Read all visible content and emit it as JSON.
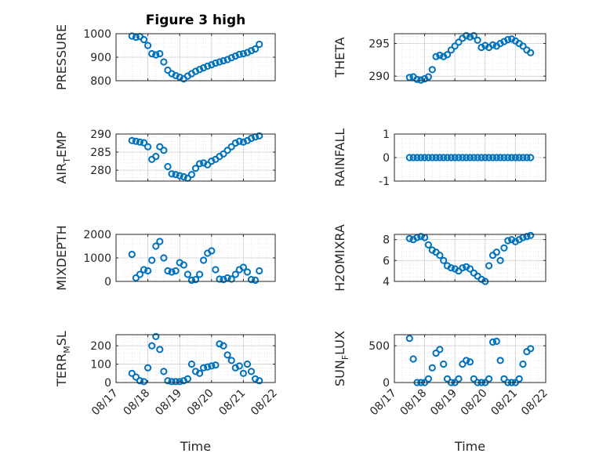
{
  "figure": {
    "title": "Figure 3 high",
    "marker_color": "#0072BD"
  },
  "chart_data": [
    {
      "type": "scatter",
      "id": "pressure",
      "title": "Figure 3 high",
      "ylabel": "PRESSURE",
      "ylabel_parts": [
        "PRESSURE"
      ],
      "xlabel": "",
      "xlim": [
        "08/17",
        "08/22"
      ],
      "ylim": [
        800,
        1000
      ],
      "yticks": [
        800,
        900,
        1000
      ],
      "ytick_labels": [
        "800",
        "900",
        "1000"
      ],
      "xticks": [],
      "xtick_labels": [],
      "x": [
        "08/17 12:00",
        "08/17 15:00",
        "08/17 18:00",
        "08/17 21:00",
        "08/18 00:00",
        "08/18 03:00",
        "08/18 06:00",
        "08/18 09:00",
        "08/18 12:00",
        "08/18 15:00",
        "08/18 18:00",
        "08/18 21:00",
        "08/19 00:00",
        "08/19 03:00",
        "08/19 06:00",
        "08/19 09:00",
        "08/19 12:00",
        "08/19 15:00",
        "08/19 18:00",
        "08/19 21:00",
        "08/20 00:00",
        "08/20 03:00",
        "08/20 06:00",
        "08/20 09:00",
        "08/20 12:00",
        "08/20 15:00",
        "08/20 18:00",
        "08/20 21:00",
        "08/21 00:00",
        "08/21 03:00",
        "08/21 06:00",
        "08/21 09:00",
        "08/21 12:00"
      ],
      "y": [
        990,
        985,
        988,
        975,
        950,
        915,
        910,
        915,
        880,
        845,
        830,
        822,
        815,
        808,
        820,
        830,
        840,
        848,
        855,
        862,
        868,
        875,
        880,
        885,
        890,
        898,
        905,
        912,
        915,
        920,
        928,
        935,
        955
      ]
    },
    {
      "type": "scatter",
      "id": "theta",
      "title": "",
      "ylabel": "THETA",
      "ylabel_parts": [
        "THETA"
      ],
      "xlabel": "",
      "xlim": [
        "08/17",
        "08/22"
      ],
      "ylim": [
        289.3,
        296.5
      ],
      "yticks": [
        290,
        295
      ],
      "ytick_labels": [
        "290",
        "295"
      ],
      "xticks": [],
      "xtick_labels": [],
      "x": [
        "08/17 12:00",
        "08/17 15:00",
        "08/17 18:00",
        "08/17 21:00",
        "08/18 00:00",
        "08/18 03:00",
        "08/18 06:00",
        "08/18 09:00",
        "08/18 12:00",
        "08/18 15:00",
        "08/18 18:00",
        "08/18 21:00",
        "08/19 00:00",
        "08/19 03:00",
        "08/19 06:00",
        "08/19 09:00",
        "08/19 12:00",
        "08/19 15:00",
        "08/19 18:00",
        "08/19 21:00",
        "08/20 00:00",
        "08/20 03:00",
        "08/20 06:00",
        "08/20 09:00",
        "08/20 12:00",
        "08/20 15:00",
        "08/20 18:00",
        "08/20 21:00",
        "08/21 00:00",
        "08/21 03:00",
        "08/21 06:00",
        "08/21 09:00",
        "08/21 12:00"
      ],
      "y": [
        289.8,
        289.9,
        289.5,
        289.4,
        289.6,
        289.9,
        291.0,
        293.0,
        293.2,
        293.0,
        293.3,
        294.0,
        294.6,
        295.2,
        295.8,
        296.2,
        296.0,
        296.2,
        295.5,
        294.4,
        294.7,
        294.4,
        294.8,
        294.6,
        295.0,
        295.3,
        295.6,
        295.7,
        295.4,
        295.0,
        294.6,
        294.0,
        293.6
      ]
    },
    {
      "type": "scatter",
      "id": "air_temp",
      "title": "",
      "ylabel": "AIR_TEMP",
      "ylabel_parts": [
        "AIR",
        "T",
        "EMP"
      ],
      "xlabel": "",
      "xlim": [
        "08/17",
        "08/22"
      ],
      "ylim": [
        277,
        290
      ],
      "yticks": [
        280,
        285,
        290
      ],
      "ytick_labels": [
        "280",
        "285",
        "290"
      ],
      "xticks": [],
      "xtick_labels": [],
      "x": [
        "08/17 12:00",
        "08/17 15:00",
        "08/17 18:00",
        "08/17 21:00",
        "08/18 00:00",
        "08/18 03:00",
        "08/18 06:00",
        "08/18 09:00",
        "08/18 12:00",
        "08/18 15:00",
        "08/18 18:00",
        "08/18 21:00",
        "08/19 00:00",
        "08/19 03:00",
        "08/19 06:00",
        "08/19 09:00",
        "08/19 12:00",
        "08/19 15:00",
        "08/19 18:00",
        "08/19 21:00",
        "08/20 00:00",
        "08/20 03:00",
        "08/20 06:00",
        "08/20 09:00",
        "08/20 12:00",
        "08/20 15:00",
        "08/20 18:00",
        "08/20 21:00",
        "08/21 00:00",
        "08/21 03:00",
        "08/21 06:00",
        "08/21 09:00",
        "08/21 12:00"
      ],
      "y": [
        288.2,
        288.0,
        287.8,
        287.6,
        286.5,
        283.0,
        283.8,
        286.5,
        285.5,
        281.0,
        279.0,
        278.8,
        278.5,
        278.2,
        277.8,
        278.8,
        280.5,
        281.8,
        282.0,
        281.5,
        282.5,
        283.0,
        283.8,
        284.5,
        285.5,
        286.5,
        287.5,
        288.0,
        287.8,
        288.2,
        288.8,
        289.2,
        289.5
      ]
    },
    {
      "type": "scatter",
      "id": "rainfall",
      "title": "",
      "ylabel": "RAINFALL",
      "ylabel_parts": [
        "RAINFALL"
      ],
      "xlabel": "",
      "xlim": [
        "08/17",
        "08/22"
      ],
      "ylim": [
        -1,
        1
      ],
      "yticks": [
        -1,
        0,
        1
      ],
      "ytick_labels": [
        "-1",
        "0",
        "1"
      ],
      "xticks": [],
      "xtick_labels": [],
      "x": [
        "08/17 12:00",
        "08/17 15:00",
        "08/17 18:00",
        "08/17 21:00",
        "08/18 00:00",
        "08/18 03:00",
        "08/18 06:00",
        "08/18 09:00",
        "08/18 12:00",
        "08/18 15:00",
        "08/18 18:00",
        "08/18 21:00",
        "08/19 00:00",
        "08/19 03:00",
        "08/19 06:00",
        "08/19 09:00",
        "08/19 12:00",
        "08/19 15:00",
        "08/19 18:00",
        "08/19 21:00",
        "08/20 00:00",
        "08/20 03:00",
        "08/20 06:00",
        "08/20 09:00",
        "08/20 12:00",
        "08/20 15:00",
        "08/20 18:00",
        "08/20 21:00",
        "08/21 00:00",
        "08/21 03:00",
        "08/21 06:00",
        "08/21 09:00",
        "08/21 12:00"
      ],
      "y": [
        0,
        0,
        0,
        0,
        0,
        0,
        0,
        0,
        0,
        0,
        0,
        0,
        0,
        0,
        0,
        0,
        0,
        0,
        0,
        0,
        0,
        0,
        0,
        0,
        0,
        0,
        0,
        0,
        0,
        0,
        0,
        0,
        0
      ]
    },
    {
      "type": "scatter",
      "id": "mixdepth",
      "title": "",
      "ylabel": "MIXDEPTH",
      "ylabel_parts": [
        "MIXDEPTH"
      ],
      "xlabel": "",
      "xlim": [
        "08/17",
        "08/22"
      ],
      "ylim": [
        0,
        2000
      ],
      "yticks": [
        0,
        1000,
        2000
      ],
      "ytick_labels": [
        "0",
        "1000",
        "2000"
      ],
      "xticks": [],
      "xtick_labels": [],
      "x": [
        "08/17 12:00",
        "08/17 15:00",
        "08/17 18:00",
        "08/17 21:00",
        "08/18 00:00",
        "08/18 03:00",
        "08/18 06:00",
        "08/18 09:00",
        "08/18 12:00",
        "08/18 15:00",
        "08/18 18:00",
        "08/18 21:00",
        "08/19 00:00",
        "08/19 03:00",
        "08/19 06:00",
        "08/19 09:00",
        "08/19 12:00",
        "08/19 15:00",
        "08/19 18:00",
        "08/19 21:00",
        "08/20 00:00",
        "08/20 03:00",
        "08/20 06:00",
        "08/20 09:00",
        "08/20 12:00",
        "08/20 15:00",
        "08/20 18:00",
        "08/20 21:00",
        "08/21 00:00",
        "08/21 03:00",
        "08/21 06:00",
        "08/21 09:00",
        "08/21 12:00"
      ],
      "y": [
        1150,
        150,
        300,
        500,
        450,
        900,
        1500,
        1700,
        1000,
        450,
        400,
        450,
        800,
        700,
        300,
        50,
        80,
        300,
        900,
        1200,
        1300,
        500,
        100,
        80,
        150,
        100,
        300,
        500,
        600,
        400,
        80,
        50,
        450
      ]
    },
    {
      "type": "scatter",
      "id": "h2omixra",
      "title": "",
      "ylabel": "H2OMIXRA",
      "ylabel_parts": [
        "H2OMIXRA"
      ],
      "xlabel": "",
      "xlim": [
        "08/17",
        "08/22"
      ],
      "ylim": [
        4,
        8.5
      ],
      "yticks": [
        4,
        6,
        8
      ],
      "ytick_labels": [
        "4",
        "6",
        "8"
      ],
      "xticks": [],
      "xtick_labels": [],
      "x": [
        "08/17 12:00",
        "08/17 15:00",
        "08/17 18:00",
        "08/17 21:00",
        "08/18 00:00",
        "08/18 03:00",
        "08/18 06:00",
        "08/18 09:00",
        "08/18 12:00",
        "08/18 15:00",
        "08/18 18:00",
        "08/18 21:00",
        "08/19 00:00",
        "08/19 03:00",
        "08/19 06:00",
        "08/19 09:00",
        "08/19 12:00",
        "08/19 15:00",
        "08/19 18:00",
        "08/19 21:00",
        "08/20 00:00",
        "08/20 03:00",
        "08/20 06:00",
        "08/20 09:00",
        "08/20 12:00",
        "08/20 15:00",
        "08/20 18:00",
        "08/20 21:00",
        "08/21 00:00",
        "08/21 03:00",
        "08/21 06:00",
        "08/21 09:00",
        "08/21 12:00"
      ],
      "y": [
        8.1,
        8.0,
        8.2,
        8.3,
        8.2,
        7.5,
        7.0,
        6.8,
        6.5,
        6.0,
        5.5,
        5.3,
        5.2,
        5.0,
        5.3,
        5.4,
        5.2,
        4.8,
        4.5,
        4.2,
        4.0,
        5.5,
        6.5,
        6.8,
        6.0,
        7.2,
        7.9,
        8.0,
        7.8,
        8.0,
        8.2,
        8.3,
        8.4
      ]
    },
    {
      "type": "scatter",
      "id": "terr_msl",
      "title": "",
      "ylabel": "TERR_MSL",
      "ylabel_parts": [
        "TERR",
        "M",
        "SL"
      ],
      "xlabel": "Time",
      "xlim": [
        "08/17",
        "08/22"
      ],
      "ylim": [
        0,
        260
      ],
      "yticks": [
        0,
        100,
        200
      ],
      "ytick_labels": [
        "0",
        "100",
        "200"
      ],
      "xticks": [
        "08/17",
        "08/18",
        "08/19",
        "08/20",
        "08/21",
        "08/22"
      ],
      "xtick_labels": [
        "08/17",
        "08/18",
        "08/19",
        "08/20",
        "08/21",
        "08/22"
      ],
      "x": [
        "08/17 12:00",
        "08/17 15:00",
        "08/17 18:00",
        "08/17 21:00",
        "08/18 00:00",
        "08/18 03:00",
        "08/18 06:00",
        "08/18 09:00",
        "08/18 12:00",
        "08/18 15:00",
        "08/18 18:00",
        "08/18 21:00",
        "08/19 00:00",
        "08/19 03:00",
        "08/19 06:00",
        "08/19 09:00",
        "08/19 12:00",
        "08/19 15:00",
        "08/19 18:00",
        "08/19 21:00",
        "08/20 00:00",
        "08/20 03:00",
        "08/20 06:00",
        "08/20 09:00",
        "08/20 12:00",
        "08/20 15:00",
        "08/20 18:00",
        "08/20 21:00",
        "08/21 00:00",
        "08/21 03:00",
        "08/21 06:00",
        "08/21 09:00",
        "08/21 12:00"
      ],
      "y": [
        50,
        30,
        10,
        5,
        80,
        200,
        250,
        180,
        60,
        10,
        5,
        5,
        5,
        10,
        20,
        100,
        60,
        50,
        80,
        85,
        90,
        95,
        210,
        200,
        150,
        120,
        80,
        90,
        50,
        100,
        60,
        20,
        10
      ]
    },
    {
      "type": "scatter",
      "id": "sun_flux",
      "title": "",
      "ylabel": "SUN_FLUX",
      "ylabel_parts": [
        "SUN",
        "F",
        "LUX"
      ],
      "xlabel": "Time",
      "xlim": [
        "08/17",
        "08/22"
      ],
      "ylim": [
        0,
        650
      ],
      "yticks": [
        0,
        500
      ],
      "ytick_labels": [
        "0",
        "500"
      ],
      "xticks": [
        "08/17",
        "08/18",
        "08/19",
        "08/20",
        "08/21",
        "08/22"
      ],
      "xtick_labels": [
        "08/17",
        "08/18",
        "08/19",
        "08/20",
        "08/21",
        "08/22"
      ],
      "x": [
        "08/17 12:00",
        "08/17 15:00",
        "08/17 18:00",
        "08/17 21:00",
        "08/18 00:00",
        "08/18 03:00",
        "08/18 06:00",
        "08/18 09:00",
        "08/18 12:00",
        "08/18 15:00",
        "08/18 18:00",
        "08/18 21:00",
        "08/19 00:00",
        "08/19 03:00",
        "08/19 06:00",
        "08/19 09:00",
        "08/19 12:00",
        "08/19 15:00",
        "08/19 18:00",
        "08/19 21:00",
        "08/20 00:00",
        "08/20 03:00",
        "08/20 06:00",
        "08/20 09:00",
        "08/20 12:00",
        "08/20 15:00",
        "08/20 18:00",
        "08/20 21:00",
        "08/21 00:00",
        "08/21 03:00",
        "08/21 06:00",
        "08/21 09:00",
        "08/21 12:00"
      ],
      "y": [
        600,
        320,
        0,
        0,
        0,
        50,
        200,
        400,
        450,
        250,
        50,
        0,
        0,
        50,
        250,
        300,
        280,
        50,
        0,
        0,
        0,
        50,
        550,
        560,
        300,
        50,
        0,
        0,
        0,
        50,
        250,
        420,
        460
      ]
    }
  ]
}
